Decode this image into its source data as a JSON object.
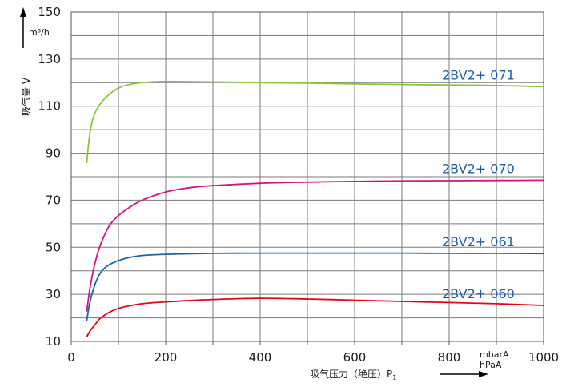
{
  "chart_data": {
    "type": "line",
    "xlabel": "吸气压力（绝压）P",
    "xlabel_sub": "1",
    "x_unit_line1": "mbarA",
    "x_unit_line2": "hPaA",
    "ylabel": "吸气量 V",
    "y_unit": "m³/h",
    "xlim": [
      0,
      1000
    ],
    "ylim": [
      10,
      150
    ],
    "x_ticks": [
      0,
      200,
      400,
      600,
      800,
      1000
    ],
    "y_ticks": [
      10,
      30,
      50,
      70,
      90,
      110,
      130,
      150
    ],
    "grid": true,
    "series": [
      {
        "name": "2BV2+ 071",
        "color": "#8cc63f",
        "x": [
          33,
          38,
          45,
          55,
          70,
          90,
          110,
          140,
          170,
          200,
          300,
          400,
          500,
          600,
          700,
          800,
          900,
          1000
        ],
        "y": [
          86,
          96,
          104,
          109,
          113,
          116.5,
          118.5,
          119.8,
          120.3,
          120.5,
          120.3,
          120,
          119.8,
          119.5,
          119.2,
          119,
          118.8,
          118.3
        ]
      },
      {
        "name": "2BV2+ 070",
        "color": "#d4147d",
        "x": [
          33,
          40,
          50,
          60,
          70,
          80,
          90,
          100,
          120,
          150,
          200,
          250,
          300,
          400,
          500,
          600,
          700,
          800,
          900,
          1000
        ],
        "y": [
          23,
          33,
          43,
          50,
          55,
          59,
          61.5,
          63.5,
          66.5,
          70,
          73.5,
          75.3,
          76.2,
          77.2,
          77.7,
          78,
          78.2,
          78.3,
          78.4,
          78.5
        ]
      },
      {
        "name": "2BV2+ 061",
        "color": "#1a64ac",
        "x": [
          33,
          40,
          50,
          60,
          70,
          80,
          90,
          100,
          120,
          150,
          200,
          300,
          400,
          500,
          600,
          700,
          800,
          900,
          1000
        ],
        "y": [
          19,
          27,
          34,
          38.5,
          41,
          42.5,
          43.5,
          44.3,
          45.5,
          46.5,
          47,
          47.4,
          47.5,
          47.5,
          47.5,
          47.5,
          47.4,
          47.4,
          47.3
        ]
      },
      {
        "name": "2BV2+ 060",
        "color": "#e30613",
        "x": [
          33,
          40,
          50,
          60,
          70,
          80,
          100,
          120,
          150,
          200,
          300,
          400,
          500,
          600,
          700,
          800,
          900,
          1000
        ],
        "y": [
          12,
          14.5,
          17,
          19.5,
          21,
          22.3,
          24,
          25,
          26,
          26.8,
          27.8,
          28.3,
          28,
          27.5,
          27,
          26.5,
          26,
          25.3
        ]
      }
    ]
  },
  "colors": {
    "label_blue": "#1c5fa8",
    "grid": "#7a7a7a"
  }
}
